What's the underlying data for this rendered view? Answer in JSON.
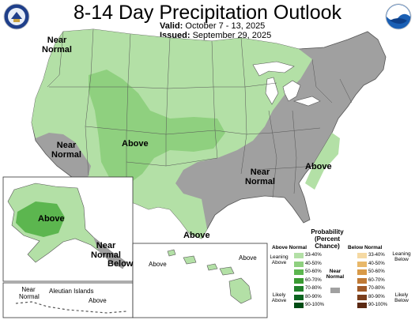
{
  "header": {
    "title": "8-14 Day Precipitation Outlook",
    "valid_label": "Valid:",
    "valid_value": "October 7 - 13, 2025",
    "issued_label": "Issued:",
    "issued_value": "September 29, 2025"
  },
  "colors": {
    "above_33_40": "#b3e0a6",
    "above_40_50": "#8fd07f",
    "below_near": "#a0a0a0",
    "water": "#ffffff",
    "border": "#555555"
  },
  "map_labels": {
    "near_normal_nw": "Near Normal",
    "near_normal_ca": "Near Normal",
    "above_central": "Above",
    "near_normal_se": "Near Normal",
    "above_se": "Above",
    "above_tx": "Above",
    "above_ak": "Above",
    "near_normal_ak": "Near Normal",
    "below_ak": "Below",
    "near_normal_aleut": "Near Normal",
    "aleutian_islands": "Aleutian Islands",
    "above_aleut": "Above",
    "above_hi_w": "Above",
    "above_hi_e": "Above"
  },
  "legend": {
    "title": "Probability (Percent Chance)",
    "above_header": "Above Normal",
    "below_header": "Below Normal",
    "near_label": "Near Normal",
    "leaning_above": "Leaning Above",
    "likely_above": "Likely Above",
    "leaning_below": "Leaning Below",
    "likely_below": "Likely Below",
    "ranges": [
      "33-40%",
      "40-50%",
      "50-60%",
      "60-70%",
      "70-80%",
      "80-90%",
      "90-100%"
    ],
    "above_colors": [
      "#b3e0a6",
      "#8fd07f",
      "#5cb64f",
      "#3a9a32",
      "#20802a",
      "#0c6420",
      "#004c14"
    ],
    "below_colors": [
      "#f5d9a3",
      "#e8b86a",
      "#d89a48",
      "#c07a35",
      "#a05a28",
      "#7a3e1c",
      "#5a2812"
    ],
    "near_color": "#a0a0a0"
  }
}
